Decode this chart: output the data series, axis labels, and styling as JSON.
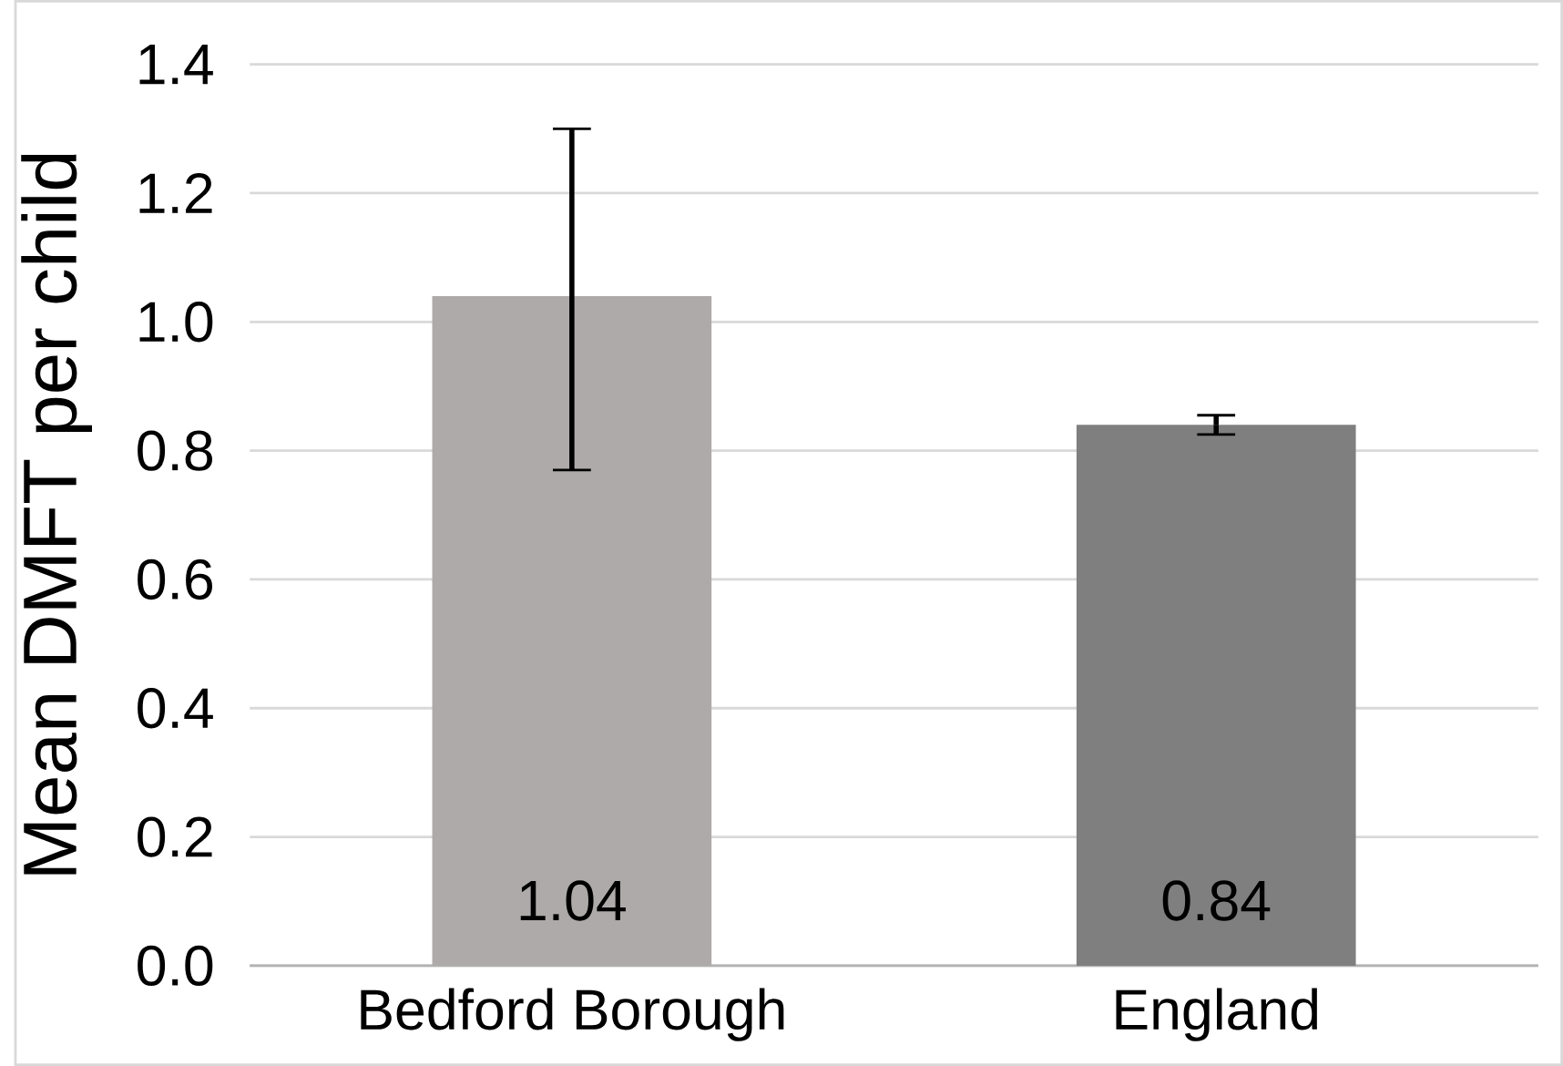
{
  "chart_data": {
    "type": "bar",
    "ylabel": "Mean DMFT per child",
    "categories": [
      "Bedford Borough",
      "England"
    ],
    "values": [
      1.04,
      0.84
    ],
    "colors": [
      "#aeaaaa",
      "#7f7f7f"
    ],
    "errors": [
      [
        0.77,
        1.3
      ],
      [
        0.825,
        0.855
      ]
    ],
    "data_labels": true,
    "ylim": [
      0,
      1.4
    ],
    "yticks": [
      {
        "value": 0,
        "label": "0.0"
      },
      {
        "value": 0.2,
        "label": "0.2"
      },
      {
        "value": 0.4,
        "label": "0.4"
      },
      {
        "value": 0.6,
        "label": "0.6"
      },
      {
        "value": 0.8,
        "label": "0.8"
      },
      {
        "value": 1.0,
        "label": "1.0"
      },
      {
        "value": 1.2,
        "label": "1.2"
      },
      {
        "value": 1.4,
        "label": "1.4"
      }
    ],
    "grid": "y"
  }
}
